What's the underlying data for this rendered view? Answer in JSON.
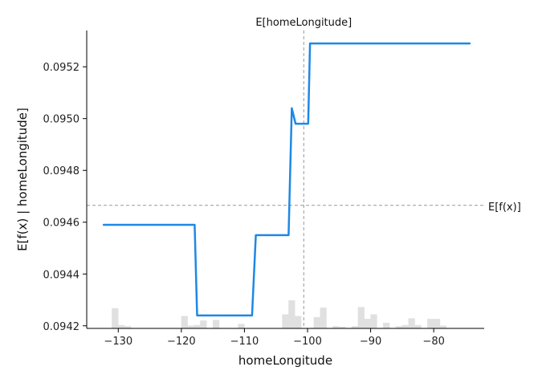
{
  "chart_data": {
    "type": "line",
    "title": "",
    "xlabel": "homeLongitude",
    "ylabel": "E[f(x) | homeLongitude]",
    "xlim": [
      -135,
      -72
    ],
    "ylim": [
      0.09419,
      0.09534
    ],
    "x_ticks": [
      -130,
      -120,
      -110,
      -100,
      -90,
      -80
    ],
    "x_tick_labels": [
      "−130",
      "−120",
      "−110",
      "−100",
      "−90",
      "−80"
    ],
    "y_ticks": [
      0.0942,
      0.0944,
      0.0946,
      0.0948,
      0.095,
      0.0952
    ],
    "y_tick_labels": [
      "0.0942",
      "0.0944",
      "0.0946",
      "0.0948",
      "0.0950",
      "0.0952"
    ],
    "series": [
      {
        "name": "",
        "color": "#1e88e5",
        "x": [
          -132.3,
          -117.9,
          -117.5,
          -108.8,
          -108.2,
          -103.0,
          -102.5,
          -101.9,
          -100.5,
          -99.9,
          -99.6,
          -74.3
        ],
        "y": [
          0.09459,
          0.09459,
          0.09424,
          0.09424,
          0.09455,
          0.09455,
          0.09504,
          0.09498,
          0.09498,
          0.09498,
          0.09529,
          0.09529
        ]
      }
    ],
    "reference_lines": {
      "vertical": {
        "x": -100.6,
        "label": "E[homeLongitude]"
      },
      "horizontal": {
        "y": 0.094665,
        "label": "E[f(x)]"
      }
    },
    "histogram": {
      "color": "#e0e0e0",
      "bin_width": 1.05,
      "bins": [
        {
          "x": -130.5,
          "h": 0.36
        },
        {
          "x": -129.5,
          "h": 0.06
        },
        {
          "x": -128.5,
          "h": 0.04
        },
        {
          "x": -119.5,
          "h": 0.22
        },
        {
          "x": -118.5,
          "h": 0.05
        },
        {
          "x": -117.5,
          "h": 0.06
        },
        {
          "x": -116.5,
          "h": 0.14
        },
        {
          "x": -114.5,
          "h": 0.15
        },
        {
          "x": -110.5,
          "h": 0.08
        },
        {
          "x": -103.5,
          "h": 0.25
        },
        {
          "x": -102.5,
          "h": 0.5
        },
        {
          "x": -101.5,
          "h": 0.22
        },
        {
          "x": -98.5,
          "h": 0.2
        },
        {
          "x": -97.5,
          "h": 0.37
        },
        {
          "x": -95.5,
          "h": 0.04
        },
        {
          "x": -94.5,
          "h": 0.03
        },
        {
          "x": -92.5,
          "h": 0.04
        },
        {
          "x": -91.5,
          "h": 0.38
        },
        {
          "x": -90.5,
          "h": 0.17
        },
        {
          "x": -89.5,
          "h": 0.25
        },
        {
          "x": -87.5,
          "h": 0.1
        },
        {
          "x": -85.5,
          "h": 0.04
        },
        {
          "x": -84.5,
          "h": 0.06
        },
        {
          "x": -83.5,
          "h": 0.18
        },
        {
          "x": -82.5,
          "h": 0.06
        },
        {
          "x": -80.5,
          "h": 0.17
        },
        {
          "x": -79.5,
          "h": 0.17
        },
        {
          "x": -78.5,
          "h": 0.05
        }
      ]
    }
  }
}
